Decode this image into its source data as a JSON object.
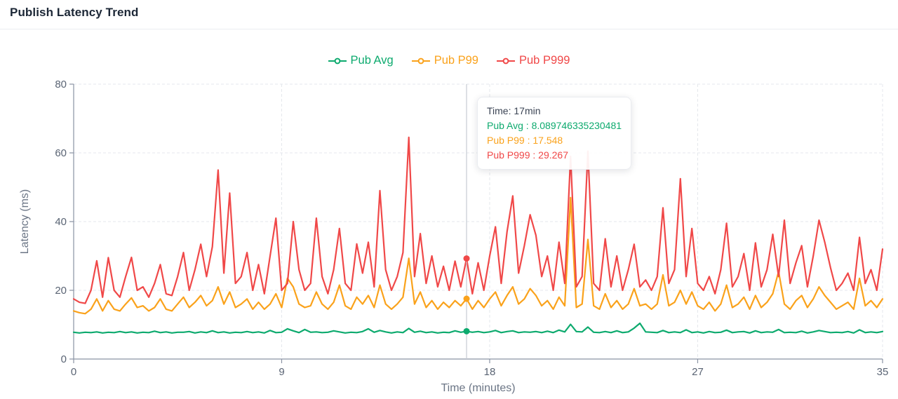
{
  "header": {
    "title": "Publish Latency Trend"
  },
  "tooltip": {
    "time_text": "Time: 17min",
    "rows": [
      {
        "label": "Pub Avg",
        "text": "Pub Avg : 8.089746335230481"
      },
      {
        "label": "Pub P99",
        "text": "Pub P99 : 17.548"
      },
      {
        "label": "Pub P999",
        "text": "Pub P999 : 29.267"
      }
    ]
  },
  "chart_data": {
    "type": "line",
    "title": "Publish Latency Trend",
    "xlabel": "Time (minutes)",
    "ylabel": "Latency (ms)",
    "xlim": [
      0,
      35
    ],
    "ylim": [
      0,
      80
    ],
    "x_ticks": [
      0,
      9,
      18,
      27,
      35
    ],
    "y_ticks": [
      0,
      20,
      40,
      60,
      80
    ],
    "grid": true,
    "legend_position": "top",
    "x_start": 0,
    "x_step": 0.25,
    "crosshair": {
      "x": 17,
      "point_index": 68
    },
    "series": [
      {
        "name": "Pub Avg",
        "color": "#0daa6e",
        "values": [
          7.8,
          7.6,
          7.8,
          7.7,
          7.9,
          7.6,
          7.8,
          7.7,
          8.0,
          7.7,
          7.9,
          7.6,
          7.8,
          7.7,
          8.1,
          7.7,
          7.9,
          7.6,
          7.8,
          7.8,
          8.0,
          7.6,
          7.9,
          7.7,
          8.2,
          7.7,
          7.9,
          7.6,
          7.8,
          7.7,
          8.0,
          7.7,
          7.9,
          7.6,
          8.3,
          7.7,
          7.8,
          8.8,
          8.2,
          7.7,
          8.6,
          7.8,
          7.9,
          7.7,
          7.8,
          8.2,
          7.9,
          7.6,
          7.8,
          7.7,
          8.0,
          8.8,
          7.8,
          8.3,
          7.9,
          7.6,
          7.9,
          7.7,
          8.9,
          7.8,
          8.1,
          7.7,
          7.9,
          7.6,
          7.8,
          7.7,
          8.2,
          7.8,
          8.089746335230481,
          7.8,
          8.0,
          7.7,
          7.9,
          8.3,
          7.7,
          8.0,
          8.2,
          7.7,
          7.9,
          7.8,
          8.0,
          7.7,
          8.1,
          7.7,
          8.4,
          7.9,
          10.1,
          8.0,
          7.9,
          9.3,
          7.8,
          7.7,
          8.0,
          7.7,
          8.2,
          7.7,
          7.9,
          9.0,
          10.4,
          7.9,
          7.8,
          7.7,
          8.3,
          7.7,
          7.9,
          7.7,
          8.5,
          7.7,
          7.9,
          7.6,
          8.0,
          7.7,
          7.8,
          8.4,
          7.7,
          7.9,
          8.0,
          7.6,
          8.2,
          7.7,
          7.9,
          7.8,
          8.6,
          7.7,
          7.8,
          7.7,
          8.1,
          7.6,
          7.9,
          8.3,
          8.0,
          7.7,
          7.8,
          7.7,
          8.0,
          7.6,
          8.5,
          7.7,
          7.9,
          7.7,
          8.0
        ]
      },
      {
        "name": "Pub P99",
        "color": "#faa21b",
        "values": [
          14,
          13.5,
          13.2,
          14.5,
          17.5,
          14,
          17,
          14.5,
          14,
          16,
          17.8,
          15,
          15.5,
          14,
          15,
          17.5,
          14.5,
          14,
          16,
          18,
          15,
          16.5,
          18.5,
          15.5,
          17,
          21,
          16,
          19.5,
          15,
          16,
          17.5,
          14.5,
          16.5,
          14.5,
          16,
          19,
          15,
          23.5,
          21,
          16,
          15,
          15.5,
          19.5,
          16,
          14.5,
          16.5,
          21.5,
          15.5,
          14.5,
          18,
          16,
          18.5,
          15,
          21.5,
          16,
          14.5,
          16,
          18,
          29.3,
          16,
          19.5,
          15,
          17,
          14.5,
          16.5,
          15,
          17,
          15.5,
          17.548,
          14.5,
          17,
          15,
          17.5,
          19.5,
          15.5,
          18.5,
          21,
          16,
          17.5,
          20.5,
          18.5,
          15.5,
          17,
          14.5,
          18,
          15.5,
          47,
          15,
          16,
          34.8,
          15.5,
          14.5,
          19,
          15,
          17,
          14.5,
          16,
          20.5,
          15.5,
          16,
          14.5,
          16,
          24.5,
          15.5,
          16.5,
          20,
          16,
          19.5,
          15.5,
          14.5,
          16.5,
          14,
          16,
          21.5,
          15,
          16,
          18,
          14.5,
          18.5,
          15,
          16.5,
          19,
          25.5,
          16,
          14.5,
          17,
          18.5,
          15,
          17.5,
          21,
          18.5,
          16.5,
          14.5,
          15.5,
          16.5,
          14.5,
          23.5,
          15.5,
          17,
          15,
          17.5
        ]
      },
      {
        "name": "Pub P999",
        "color": "#f04848",
        "values": [
          17.5,
          16.5,
          16.2,
          20,
          28.6,
          18,
          29.5,
          20,
          18,
          24,
          29.6,
          20,
          21,
          18,
          22,
          27.5,
          19,
          18.5,
          24,
          31,
          20,
          26,
          33.4,
          24,
          32.7,
          55,
          25,
          48.3,
          22,
          24,
          31,
          20,
          27.5,
          19,
          30,
          41,
          20,
          22,
          40,
          26,
          20,
          22,
          41,
          24,
          19,
          26,
          38,
          22,
          20,
          33.5,
          25,
          34,
          21,
          49,
          26,
          20,
          24,
          31,
          64.5,
          24,
          36.5,
          22,
          30,
          21,
          27,
          20,
          28.5,
          21,
          29.267,
          19,
          28,
          20,
          30,
          38.5,
          22,
          37,
          47.5,
          25,
          33,
          42,
          36,
          24,
          30,
          20,
          34,
          22,
          59,
          21,
          24,
          60.5,
          22,
          20,
          35,
          21,
          30,
          20,
          26,
          33.4,
          21,
          23,
          20,
          24,
          44,
          22,
          26,
          52.5,
          24,
          38,
          22,
          20,
          24,
          19,
          26,
          39.5,
          21,
          24,
          30.7,
          20,
          33.8,
          21,
          26,
          36.3,
          24,
          40.4,
          22,
          28,
          33,
          21,
          30,
          40.4,
          34,
          26.5,
          20,
          22,
          25,
          20,
          35.4,
          22,
          26,
          20,
          32
        ]
      }
    ]
  }
}
